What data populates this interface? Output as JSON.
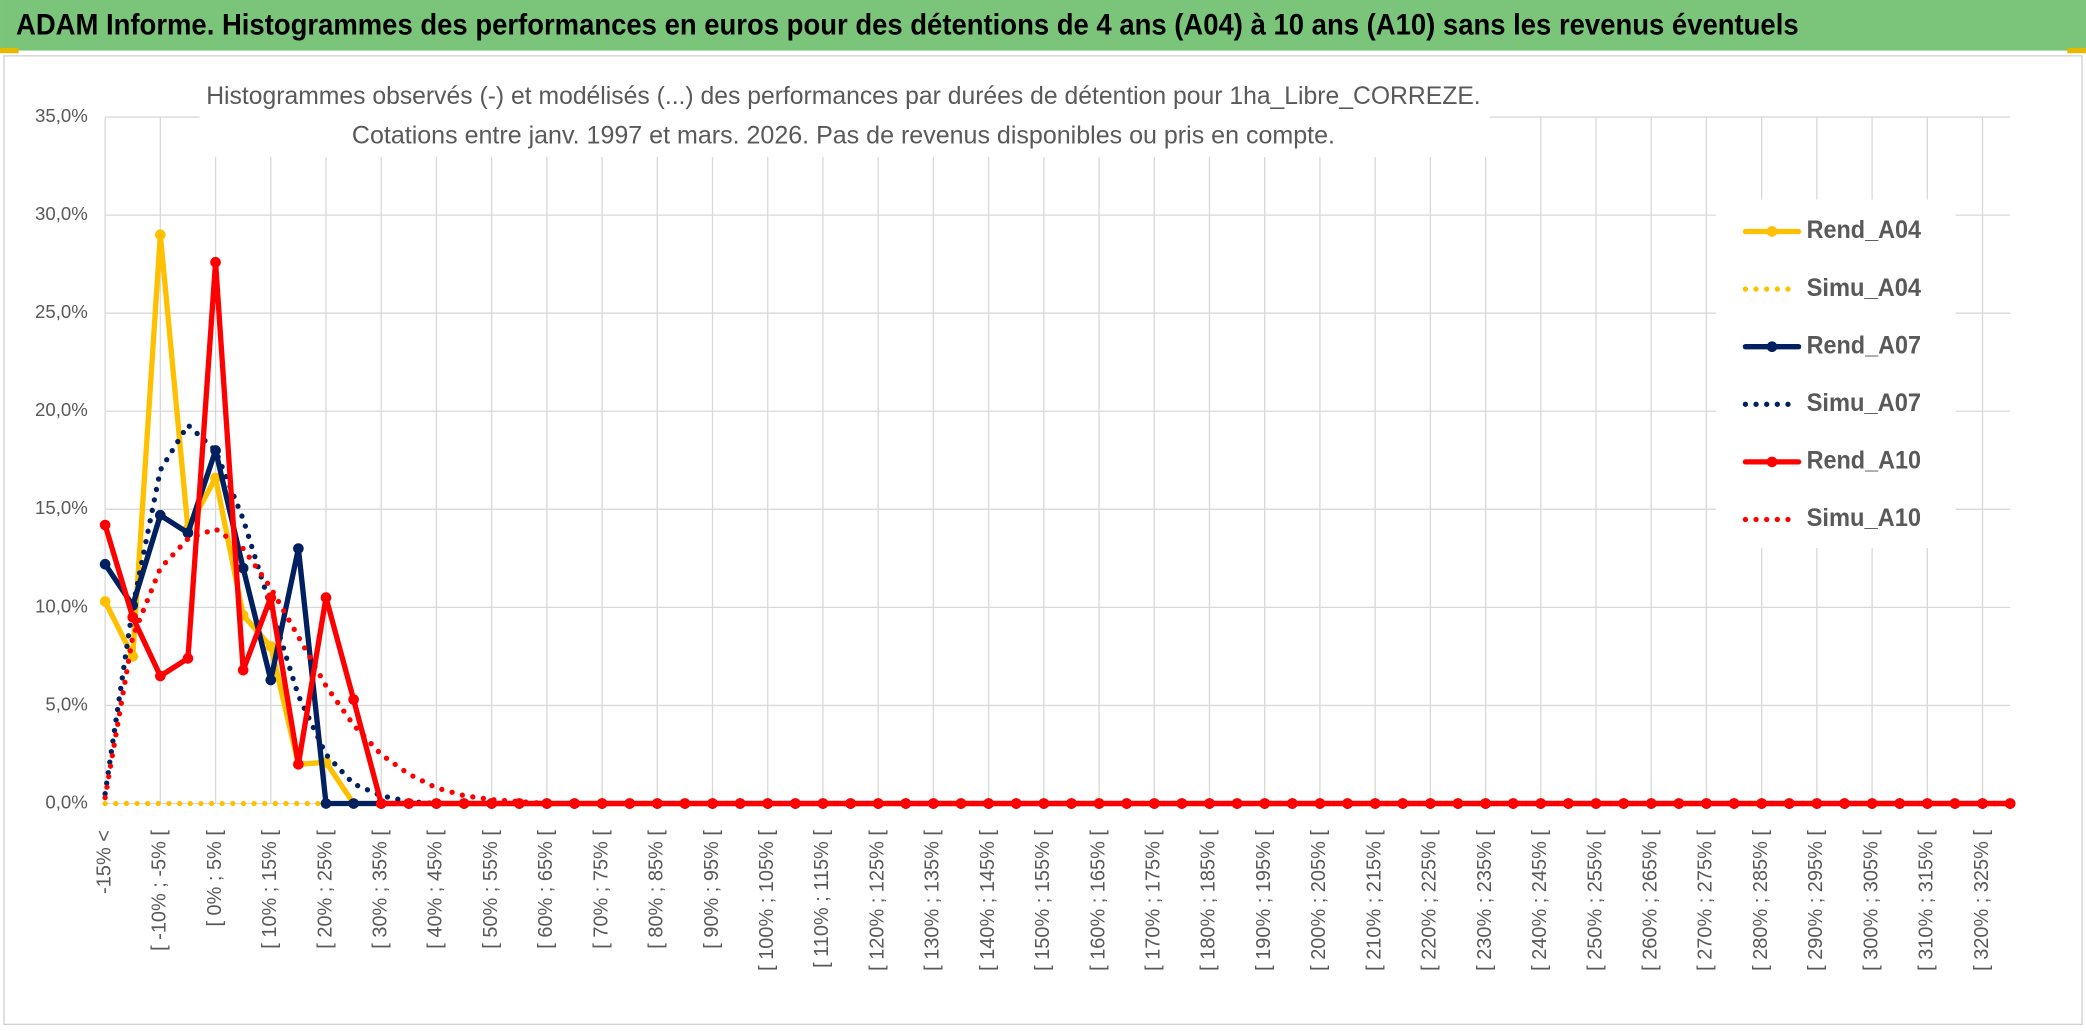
{
  "chart_data": {
    "type": "line",
    "title": "ADAM Informe. Histogrammes des performances en euros pour des détentions de 4 ans (A04) à 10 ans (A10) sans les revenus éventuels",
    "subtitle": [
      "Histogrammes observés (-) et modélisés (...) des performances par durées de détention pour 1ha_Libre_CORREZE.",
      "Cotations entre janv. 1997 et mars. 2026. Pas de revenus disponibles ou pris en compte."
    ],
    "categories": [
      "-15% <",
      null,
      "[ -10% ; -5% [",
      null,
      "[ 0% ; 5% [",
      null,
      "[ 10% ; 15% [",
      null,
      "[ 20% ; 25% [",
      null,
      "[ 30% ; 35% [",
      null,
      "[ 40% ; 45% [",
      null,
      "[ 50% ; 55% [",
      null,
      "[ 60% ; 65% [",
      null,
      "[ 70% ; 75% [",
      null,
      "[ 80% ; 85% [",
      null,
      "[ 90% ; 95% [",
      null,
      "[ 100% ; 105% [",
      null,
      "[ 110% ; 115% [",
      null,
      "[ 120% ; 125% [",
      null,
      "[ 130% ; 135% [",
      null,
      "[ 140% ; 145% [",
      null,
      "[ 150% ; 155% [",
      null,
      "[ 160% ; 165% [",
      null,
      "[ 170% ; 175% [",
      null,
      "[ 180% ; 185% [",
      null,
      "[ 190% ; 195% [",
      null,
      "[ 200% ; 205% [",
      null,
      "[ 210% ; 215% [",
      null,
      "[ 220% ; 225% [",
      null,
      "[ 230% ; 235% [",
      null,
      "[ 240% ; 245% [",
      null,
      "[ 250% ; 255% [",
      null,
      "[ 260% ; 265% [",
      null,
      "[ 270% ; 275% [",
      null,
      "[ 280% ; 285% [",
      null,
      "[ 290% ; 295% [",
      null,
      "[ 300% ; 305% [",
      null,
      "[ 310% ; 315% [",
      null,
      "[ 320% ; 325% [",
      null
    ],
    "series": [
      {
        "name": "Rend_A04",
        "color": "#FFC000",
        "style": "solid",
        "values": [
          10.3,
          7.5,
          29.0,
          14.0,
          16.6,
          9.6,
          8.0,
          2.0,
          2.1,
          0,
          0,
          0,
          0,
          0,
          0,
          0,
          0,
          0,
          0,
          0,
          0,
          0,
          0,
          0,
          0,
          0,
          0,
          0,
          0,
          0,
          0,
          0,
          0,
          0,
          0,
          0,
          0,
          0,
          0,
          0,
          0,
          0,
          0,
          0,
          0,
          0,
          0,
          0,
          0,
          0,
          0,
          0,
          0,
          0,
          0,
          0,
          0,
          0,
          0,
          0,
          0,
          0,
          0,
          0,
          0,
          0,
          0,
          0,
          0,
          0
        ]
      },
      {
        "name": "Simu_A04",
        "color": "#FFC000",
        "style": "dotted",
        "values": [
          0,
          0,
          0,
          0,
          0,
          0,
          0,
          0,
          0,
          0,
          0,
          0,
          0,
          0,
          0,
          0,
          0,
          0,
          0,
          0,
          0,
          0,
          0,
          0,
          0,
          0,
          0,
          0,
          0,
          0,
          0,
          0,
          0,
          0,
          0,
          0,
          0,
          0,
          0,
          0,
          0,
          0,
          0,
          0,
          0,
          0,
          0,
          0,
          0,
          0,
          0,
          0,
          0,
          0,
          0,
          0,
          0,
          0,
          0,
          0,
          0,
          0,
          0,
          0,
          0,
          0,
          0,
          0,
          0,
          0
        ]
      },
      {
        "name": "Rend_A07",
        "color": "#002060",
        "style": "solid",
        "values": [
          12.2,
          10.1,
          14.7,
          13.8,
          18.0,
          12.0,
          6.3,
          13.0,
          0,
          0,
          0,
          0,
          0,
          0,
          0,
          0,
          0,
          0,
          0,
          0,
          0,
          0,
          0,
          0,
          0,
          0,
          0,
          0,
          0,
          0,
          0,
          0,
          0,
          0,
          0,
          0,
          0,
          0,
          0,
          0,
          0,
          0,
          0,
          0,
          0,
          0,
          0,
          0,
          0,
          0,
          0,
          0,
          0,
          0,
          0,
          0,
          0,
          0,
          0,
          0,
          0,
          0,
          0,
          0,
          0,
          0,
          0,
          0,
          0,
          0
        ]
      },
      {
        "name": "Simu_A07",
        "color": "#002060",
        "style": "dotted",
        "values": [
          0.5,
          10.0,
          17.0,
          19.3,
          18.0,
          14.5,
          10.0,
          5.5,
          2.5,
          1.0,
          0.4,
          0.1,
          0,
          0,
          0,
          0,
          0,
          0,
          0,
          0,
          0,
          0,
          0,
          0,
          0,
          0,
          0,
          0,
          0,
          0,
          0,
          0,
          0,
          0,
          0,
          0,
          0,
          0,
          0,
          0,
          0,
          0,
          0,
          0,
          0,
          0,
          0,
          0,
          0,
          0,
          0,
          0,
          0,
          0,
          0,
          0,
          0,
          0,
          0,
          0,
          0,
          0,
          0,
          0,
          0,
          0,
          0,
          0,
          0,
          0
        ]
      },
      {
        "name": "Rend_A10",
        "color": "#FF0000",
        "style": "solid",
        "values": [
          14.2,
          9.5,
          6.5,
          7.4,
          27.6,
          6.8,
          10.5,
          2.0,
          10.5,
          5.3,
          0,
          0,
          0,
          0,
          0,
          0,
          0,
          0,
          0,
          0,
          0,
          0,
          0,
          0,
          0,
          0,
          0,
          0,
          0,
          0,
          0,
          0,
          0,
          0,
          0,
          0,
          0,
          0,
          0,
          0,
          0,
          0,
          0,
          0,
          0,
          0,
          0,
          0,
          0,
          0,
          0,
          0,
          0,
          0,
          0,
          0,
          0,
          0,
          0,
          0,
          0,
          0,
          0,
          0,
          0,
          0,
          0,
          0,
          0,
          0
        ]
      },
      {
        "name": "Simu_A10",
        "color": "#FF0000",
        "style": "dotted",
        "values": [
          0.3,
          8.5,
          12.0,
          13.5,
          14.0,
          13.0,
          11.0,
          8.5,
          6.0,
          4.0,
          2.5,
          1.5,
          0.8,
          0.4,
          0.2,
          0.1,
          0,
          0,
          0,
          0,
          0,
          0,
          0,
          0,
          0,
          0,
          0,
          0,
          0,
          0,
          0,
          0,
          0,
          0,
          0,
          0,
          0,
          0,
          0,
          0,
          0,
          0,
          0,
          0,
          0,
          0,
          0,
          0,
          0,
          0,
          0,
          0,
          0,
          0,
          0,
          0,
          0,
          0,
          0,
          0,
          0,
          0,
          0,
          0,
          0,
          0,
          0,
          0,
          0,
          0
        ]
      }
    ],
    "ylim": [
      0,
      35
    ],
    "yticks": [
      {
        "value": 0,
        "label": "0,0%"
      },
      {
        "value": 5,
        "label": "5,0%"
      },
      {
        "value": 10,
        "label": "10,0%"
      },
      {
        "value": 15,
        "label": "15,0%"
      },
      {
        "value": 20,
        "label": "20,0%"
      },
      {
        "value": 25,
        "label": "25,0%"
      },
      {
        "value": 30,
        "label": "30,0%"
      },
      {
        "value": 35,
        "label": "35,0%"
      }
    ],
    "grid": true,
    "legend": "right"
  }
}
